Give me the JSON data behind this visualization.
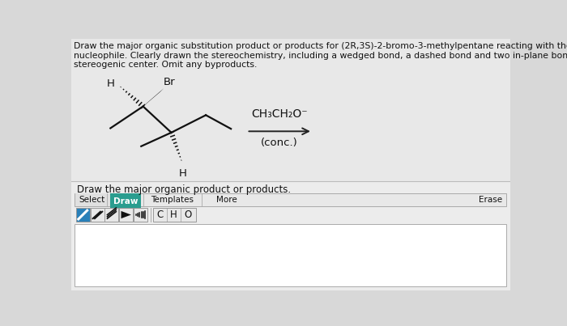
{
  "line1": "Draw the major organic substitution product or products for (2R,3S)-2-bromo-3-methylpentane reacting with the given",
  "line2": "nucleophile. Clearly drawn the stereochemistry, including a wedged bond, a dashed bond and two in-plane bonds at each",
  "line3": "stereogenic center. Omit any byproducts.",
  "reagent_line1": "CH₃CH₂O⁻",
  "condition_text": "(conc.)",
  "label_H_top": "H",
  "label_Br": "Br",
  "label_H_bot": "H",
  "draw_prompt": "Draw the major organic product or products.",
  "bg_color": "#d8d8d8",
  "panel_bg": "#e8e8e8",
  "white_bg": "#ffffff",
  "draw_btn_color": "#2a9d8f",
  "border_color": "#aaaaaa",
  "text_color": "#111111",
  "mol_color": "#111111",
  "arrow_color": "#222222",
  "btn_border": "#999999",
  "toolbar_bg": "#e0e0e0"
}
